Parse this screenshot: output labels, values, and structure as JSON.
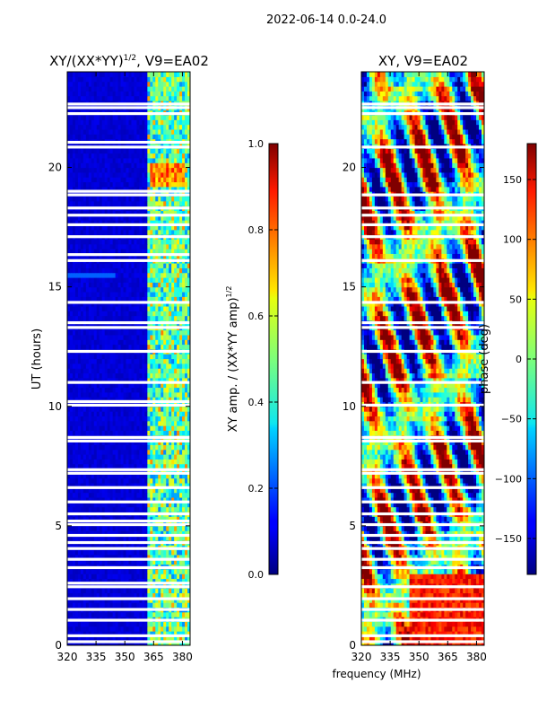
{
  "suptitle": "2022-06-14 0.0-24.0",
  "shared_xlabel": "frequency (MHz)",
  "chart_data": [
    {
      "type": "heatmap",
      "title_main": "XY/(XX*YY)",
      "title_exp": "1/2",
      "title_tail": ", V9=EA02",
      "ylabel": "UT (hours)",
      "xlim": [
        320,
        384
      ],
      "xticks": [
        320,
        335,
        350,
        365,
        380
      ],
      "ylim": [
        0,
        24
      ],
      "yticks": [
        0,
        5,
        10,
        15,
        20
      ],
      "colorbar": {
        "label_main": "XY amp. / (XX*YY amp)",
        "label_exp": "1/2",
        "range": [
          0.0,
          1.0
        ],
        "ticks": [
          "0.0",
          "0.2",
          "0.4",
          "0.6",
          "0.8",
          "1.0"
        ],
        "tick_values": [
          0.0,
          0.2,
          0.4,
          0.6,
          0.8,
          1.0
        ],
        "colormap": "jet"
      },
      "flagged_hours": [
        0.15,
        0.4,
        1.05,
        1.5,
        1.95,
        2.45,
        2.6,
        3.25,
        3.6,
        4.05,
        4.3,
        4.6,
        5.05,
        5.2,
        5.5,
        6.0,
        6.6,
        7.2,
        7.35,
        8.55,
        8.7,
        10.05,
        10.2,
        11.0,
        12.3,
        13.3,
        13.5,
        14.35,
        16.1,
        16.35,
        17.1,
        17.6,
        18.0,
        18.3,
        18.85,
        19.0,
        20.85,
        21.05,
        22.25,
        22.5,
        22.65
      ]
    },
    {
      "type": "heatmap",
      "title_main": "XY, V9=EA02",
      "xlim": [
        320,
        384
      ],
      "xticks": [
        320,
        335,
        350,
        365,
        380
      ],
      "ylim": [
        0,
        24
      ],
      "yticks": [
        0,
        5,
        10,
        15,
        20
      ],
      "colorbar": {
        "label_main": "phase (deg)",
        "range": [
          -180,
          180
        ],
        "ticks": [
          "−150",
          "−100",
          "−50",
          "0",
          "50",
          "100",
          "150"
        ],
        "tick_values": [
          -150,
          -100,
          -50,
          0,
          50,
          100,
          150
        ],
        "colormap": "jet"
      },
      "flagged_hours": [
        0.15,
        0.4,
        1.05,
        1.5,
        1.95,
        2.45,
        3.25,
        3.6,
        4.05,
        4.3,
        4.6,
        5.05,
        5.5,
        6.0,
        6.6,
        7.2,
        7.35,
        8.55,
        8.7,
        10.05,
        11.0,
        12.3,
        13.3,
        13.5,
        14.35,
        16.1,
        17.1,
        17.6,
        18.0,
        18.3,
        18.85,
        20.85,
        22.25,
        22.5,
        22.65
      ]
    }
  ]
}
